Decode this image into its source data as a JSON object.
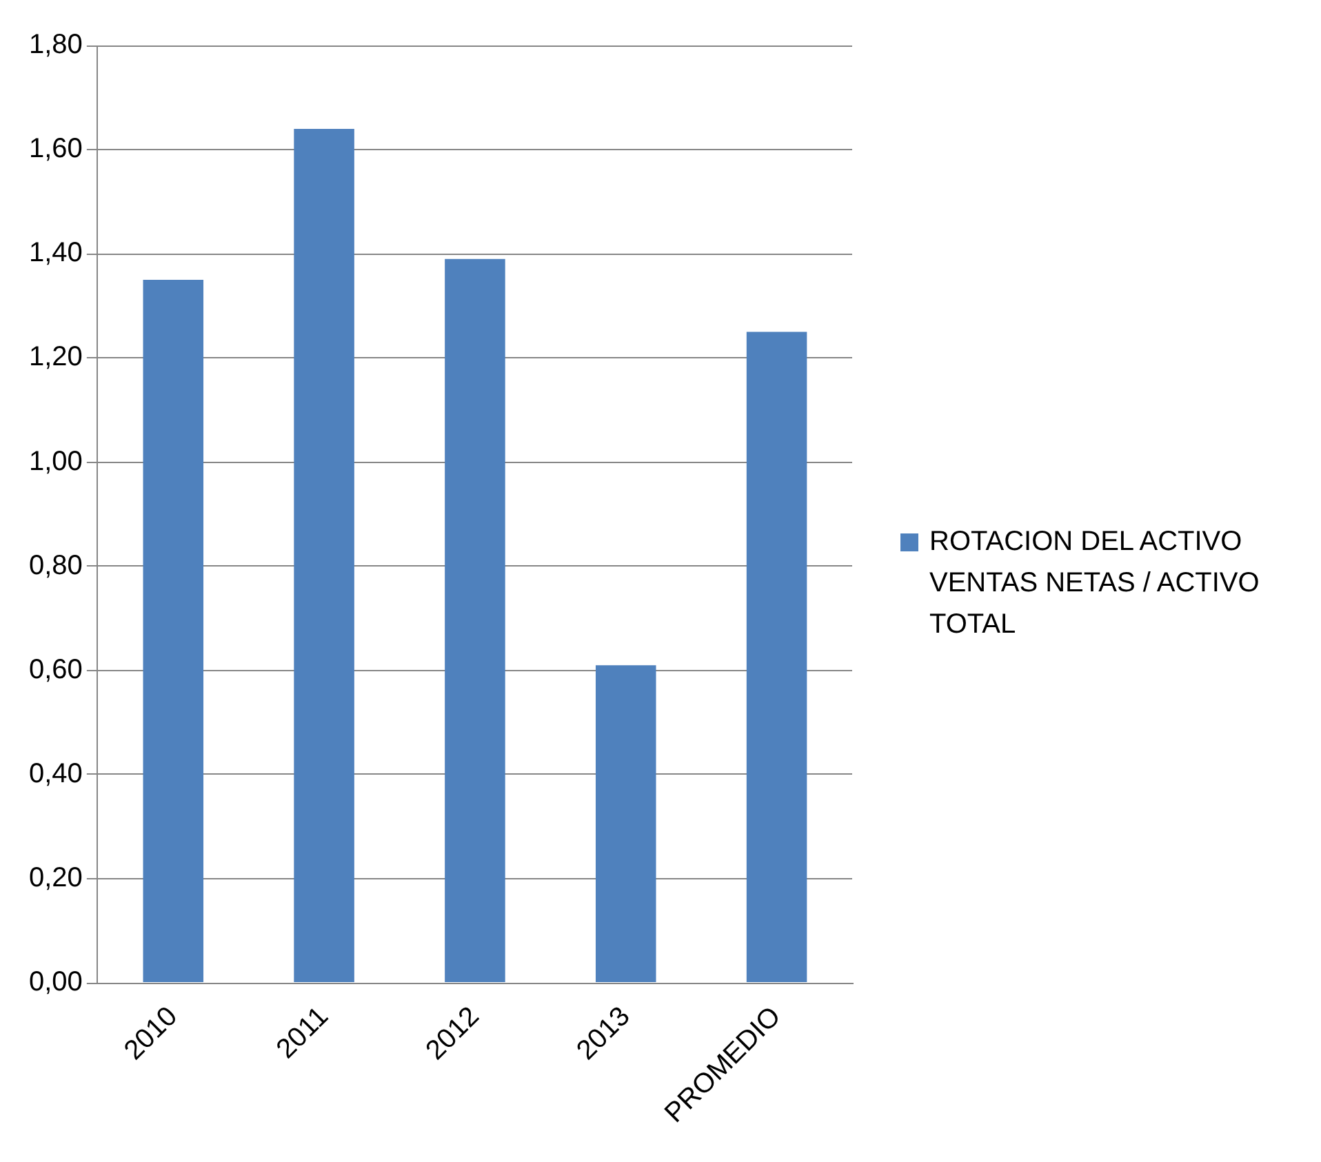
{
  "chart_data": {
    "type": "bar",
    "categories": [
      "2010",
      "2011",
      "2012",
      "2013",
      "PROMEDIO"
    ],
    "series": [
      {
        "name": "ROTACION DEL ACTIVO VENTAS NETAS / ACTIVO TOTAL",
        "color": "#4f81bd",
        "values": [
          1.35,
          1.64,
          1.39,
          0.61,
          1.25
        ]
      }
    ],
    "ylim": [
      0,
      1.8
    ],
    "yticks": [
      {
        "value": 0,
        "label": "0,00"
      },
      {
        "value": 0.2,
        "label": "0,20"
      },
      {
        "value": 0.4,
        "label": "0,40"
      },
      {
        "value": 0.6,
        "label": "0,60"
      },
      {
        "value": 0.8,
        "label": "0,80"
      },
      {
        "value": 1,
        "label": "1,00"
      },
      {
        "value": 1.2,
        "label": "1,20"
      },
      {
        "value": 1.4,
        "label": "1,40"
      },
      {
        "value": 1.6,
        "label": "1,60"
      },
      {
        "value": 1.8,
        "label": "1,80"
      }
    ],
    "grid": "y",
    "legend": "right"
  }
}
